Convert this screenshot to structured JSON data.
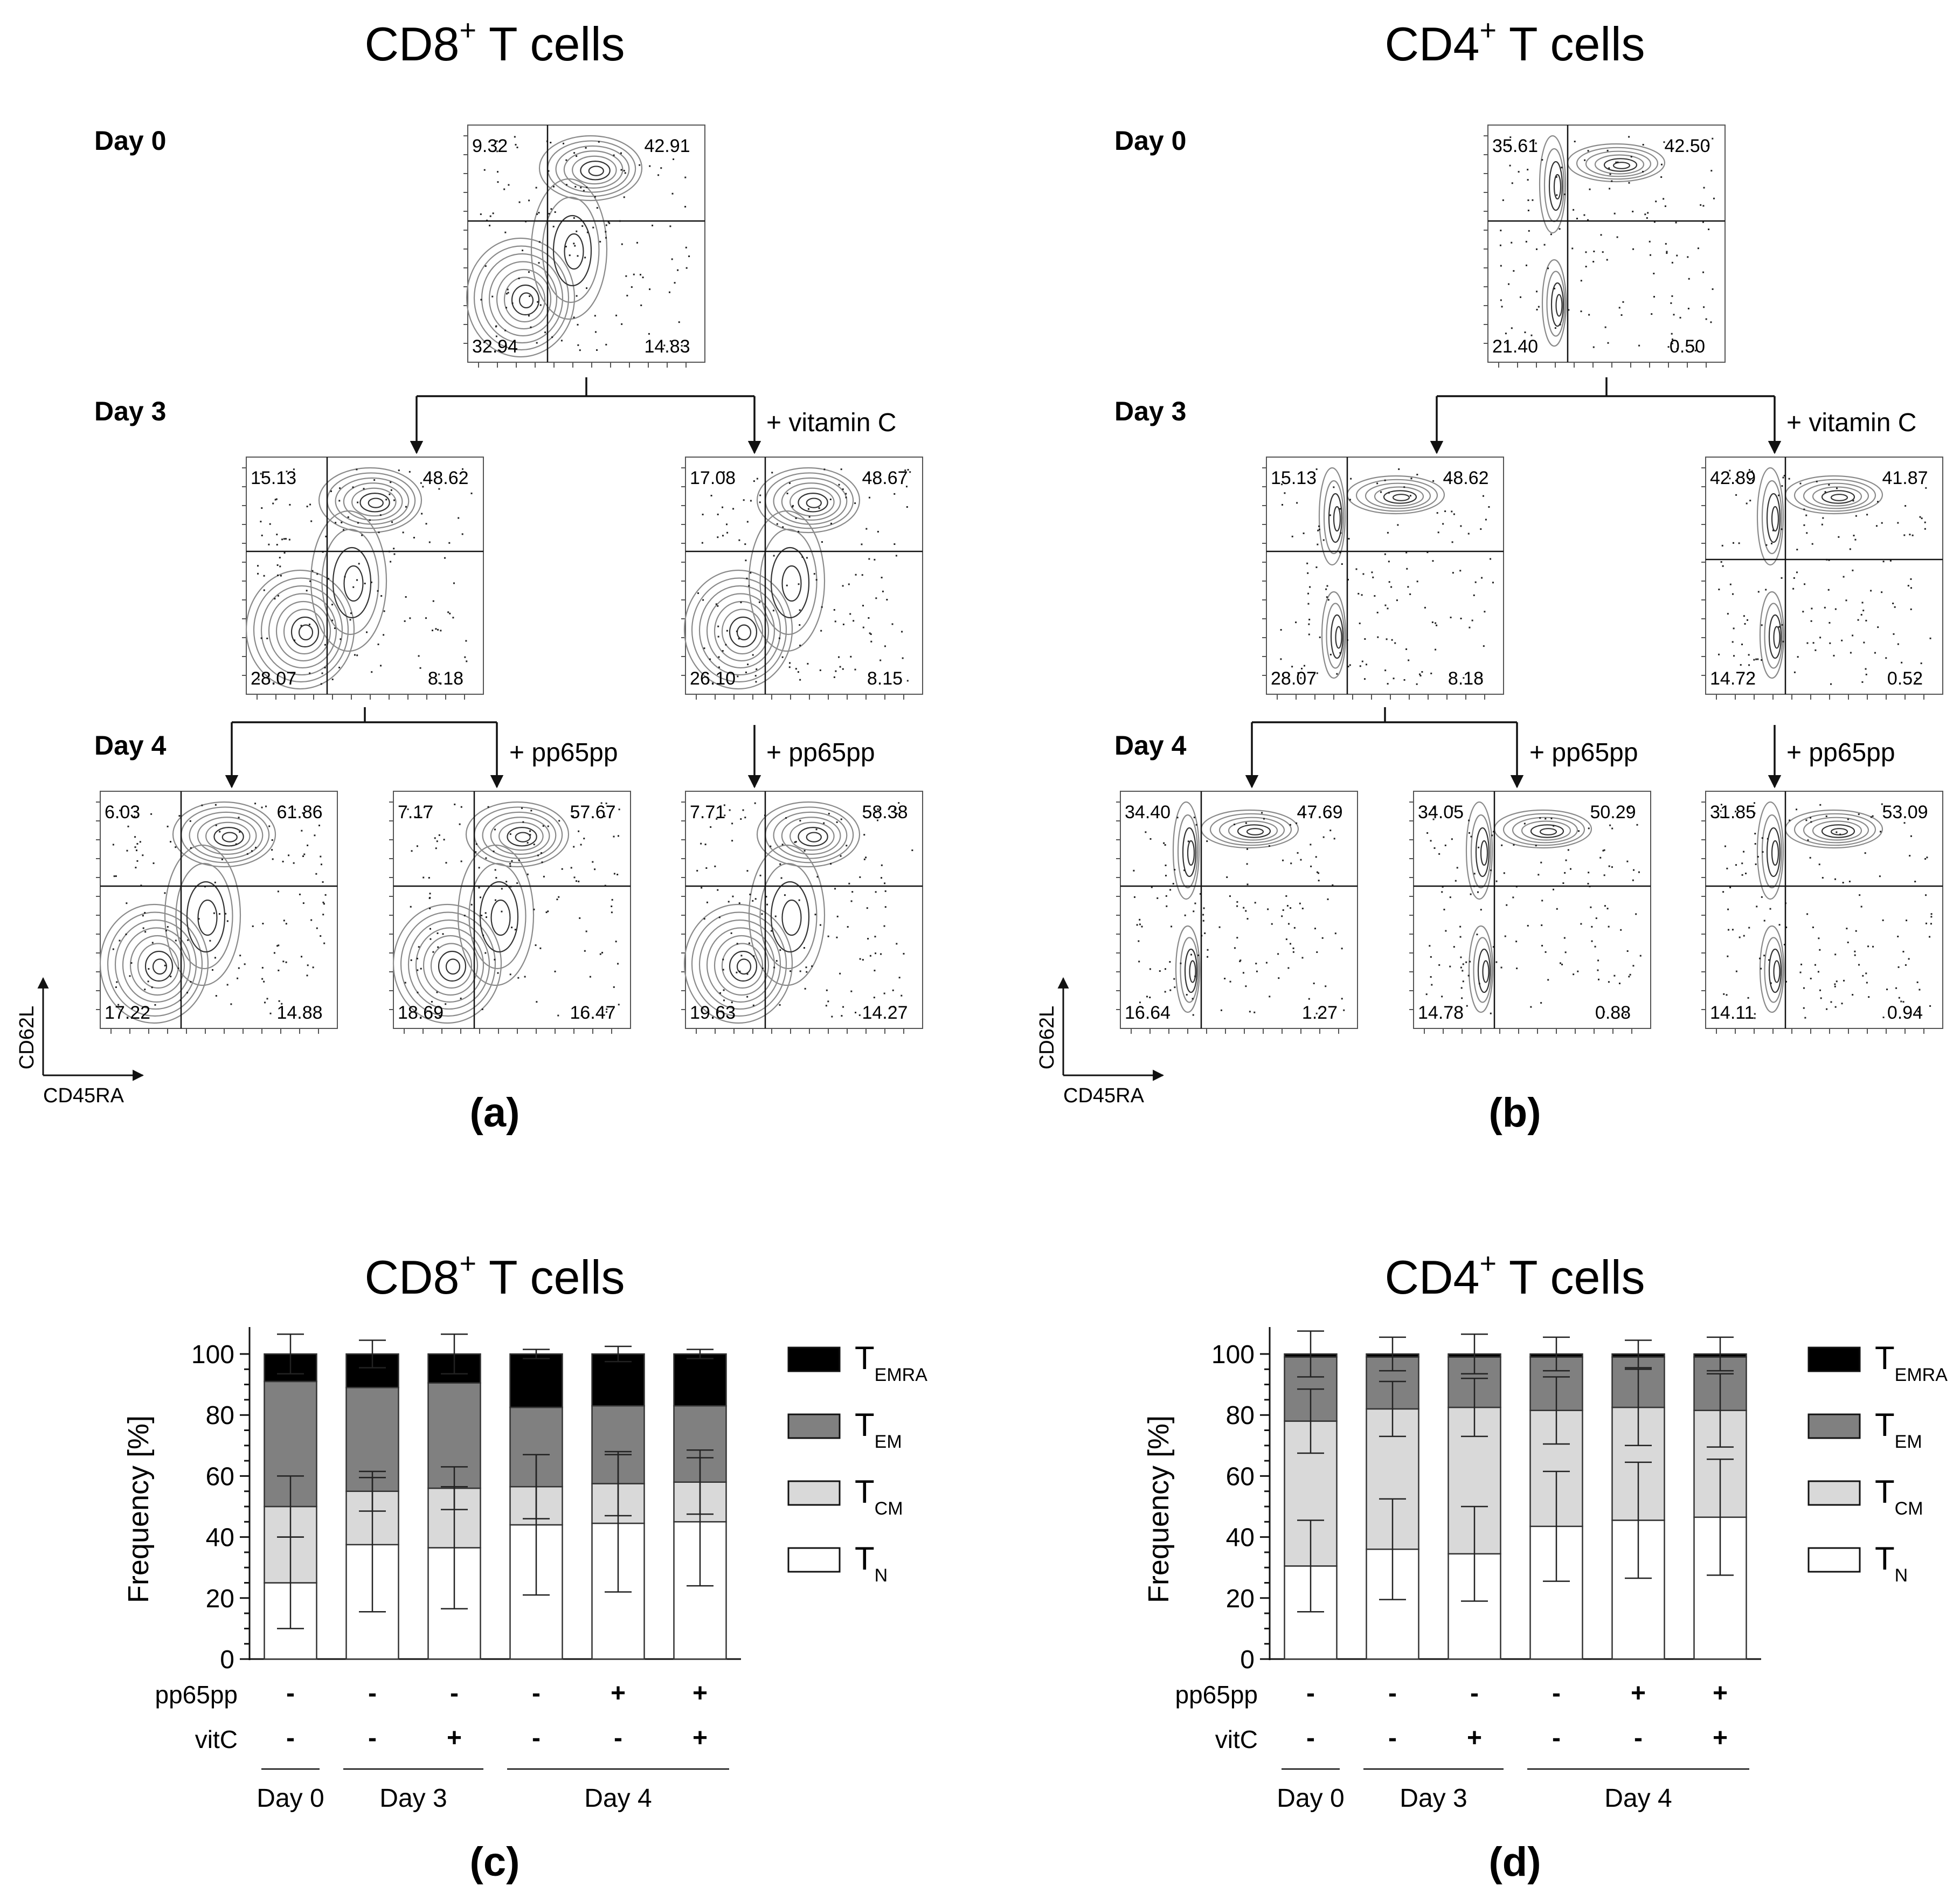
{
  "panels": {
    "a_title_main": "CD8",
    "a_title_sup": "+",
    "a_title_rest": " T cells",
    "b_title_main": "CD4",
    "b_title_sup": "+",
    "b_title_rest": " T cells",
    "c_title_main": "CD8",
    "c_title_sup": "+",
    "c_title_rest": " T cells",
    "d_title_main": "CD4",
    "d_title_sup": "+",
    "d_title_rest": " T cells",
    "labels": [
      "(a)",
      "(b)",
      "(c)",
      "(d)"
    ]
  },
  "flow": {
    "days": [
      "Day 0",
      "Day 3",
      "Day 4"
    ],
    "treatments": {
      "vitc": "+ vitamin C",
      "pp65": "+ pp65pp"
    },
    "axes": {
      "y": "CD62L",
      "x": "CD45RA"
    },
    "cd8": {
      "day0": [
        "9.32",
        "42.91",
        "32.94",
        "14.83"
      ],
      "day3": [
        "15.13",
        "48.62",
        "28.07",
        "8.18"
      ],
      "day3_vitc": [
        "17.08",
        "48.67",
        "26.10",
        "8.15"
      ],
      "day4": [
        "6.03",
        "61.86",
        "17.22",
        "14.88"
      ],
      "day4_pp65": [
        "7.17",
        "57.67",
        "18.69",
        "16.47"
      ],
      "day4_pp65_vitc": [
        "7.71",
        "58.38",
        "19.63",
        "14.27"
      ]
    },
    "cd4": {
      "day0": [
        "35.61",
        "42.50",
        "21.40",
        "0.50"
      ],
      "day3": [
        "15.13",
        "48.62",
        "28.07",
        "8.18"
      ],
      "day3_vitc": [
        "42.89",
        "41.87",
        "14.72",
        "0.52"
      ],
      "day4": [
        "34.40",
        "47.69",
        "16.64",
        "1.27"
      ],
      "day4_pp65": [
        "34.05",
        "50.29",
        "14.78",
        "0.88"
      ],
      "day4_pp65_vitc": [
        "31.85",
        "53.09",
        "14.11",
        "0.94"
      ]
    }
  },
  "chart_data": [
    {
      "type": "bar",
      "stacked": true,
      "title": "CD8+ T cells",
      "ylabel": "Frequency [%]",
      "ylim": [
        0,
        100
      ],
      "yticks": [
        "0",
        "20",
        "40",
        "60",
        "80",
        "100"
      ],
      "row_labels": [
        "pp65pp",
        "vitC"
      ],
      "pp65pp": [
        "-",
        "-",
        "-",
        "-",
        "+",
        "+"
      ],
      "vitC": [
        "-",
        "-",
        "+",
        "-",
        "-",
        "+"
      ],
      "groups": [
        "Day 0",
        "Day 3",
        "Day 4"
      ],
      "series": [
        {
          "name": "TN",
          "main": "T",
          "sub": "N",
          "color": "#ffffff",
          "values": [
            25,
            37.5,
            36.5,
            44,
            44.5,
            45
          ],
          "err": [
            15,
            22,
            20,
            23,
            22.5,
            21
          ]
        },
        {
          "name": "TCM",
          "main": "T",
          "sub": "CM",
          "color": "#d9d9d9",
          "values": [
            25,
            17.5,
            19.5,
            12.5,
            13,
            13
          ],
          "err": [
            10,
            6.5,
            7,
            10.5,
            10.5,
            10.5
          ]
        },
        {
          "name": "TEM",
          "main": "T",
          "sub": "EM",
          "color": "#808080",
          "values": [
            41,
            34,
            34.5,
            26,
            25.5,
            25
          ],
          "err": [
            0,
            0,
            0,
            0,
            0,
            0
          ]
        },
        {
          "name": "TEMRA",
          "main": "T",
          "sub": "EMRA",
          "color": "#000000",
          "values": [
            9,
            11,
            9.5,
            17.5,
            17,
            17
          ],
          "err": [
            6.5,
            4.5,
            6.5,
            1.5,
            2.5,
            1.5
          ]
        }
      ]
    },
    {
      "type": "bar",
      "stacked": true,
      "title": "CD4+ T cells",
      "ylabel": "Frequency [%]",
      "ylim": [
        0,
        100
      ],
      "yticks": [
        "0",
        "20",
        "40",
        "60",
        "80",
        "100"
      ],
      "row_labels": [
        "pp65pp",
        "vitC"
      ],
      "pp65pp": [
        "-",
        "-",
        "-",
        "-",
        "+",
        "+"
      ],
      "vitC": [
        "-",
        "-",
        "+",
        "-",
        "-",
        "+"
      ],
      "groups": [
        "Day 0",
        "Day 3",
        "Day 4"
      ],
      "series": [
        {
          "name": "TN",
          "main": "T",
          "sub": "N",
          "color": "#ffffff",
          "values": [
            30.5,
            36,
            34.5,
            43.5,
            45.5,
            46.5
          ],
          "err": [
            15,
            16.5,
            15.5,
            18,
            19,
            19
          ]
        },
        {
          "name": "TCM",
          "main": "T",
          "sub": "CM",
          "color": "#d9d9d9",
          "values": [
            47.5,
            46,
            48,
            38,
            37,
            35
          ],
          "err": [
            10.5,
            9,
            9.5,
            11,
            12.5,
            12
          ]
        },
        {
          "name": "TEM",
          "main": "T",
          "sub": "EM",
          "color": "#808080",
          "values": [
            21,
            17,
            16.5,
            17.5,
            16.5,
            17.5
          ],
          "err": [
            0,
            0,
            0,
            0,
            0,
            0
          ]
        },
        {
          "name": "TEMRA",
          "main": "T",
          "sub": "EMRA",
          "color": "#000000",
          "values": [
            1,
            1,
            1,
            1,
            1,
            1
          ],
          "err": [
            7.5,
            5.5,
            6.5,
            5.5,
            4.5,
            5.5
          ]
        }
      ]
    }
  ]
}
